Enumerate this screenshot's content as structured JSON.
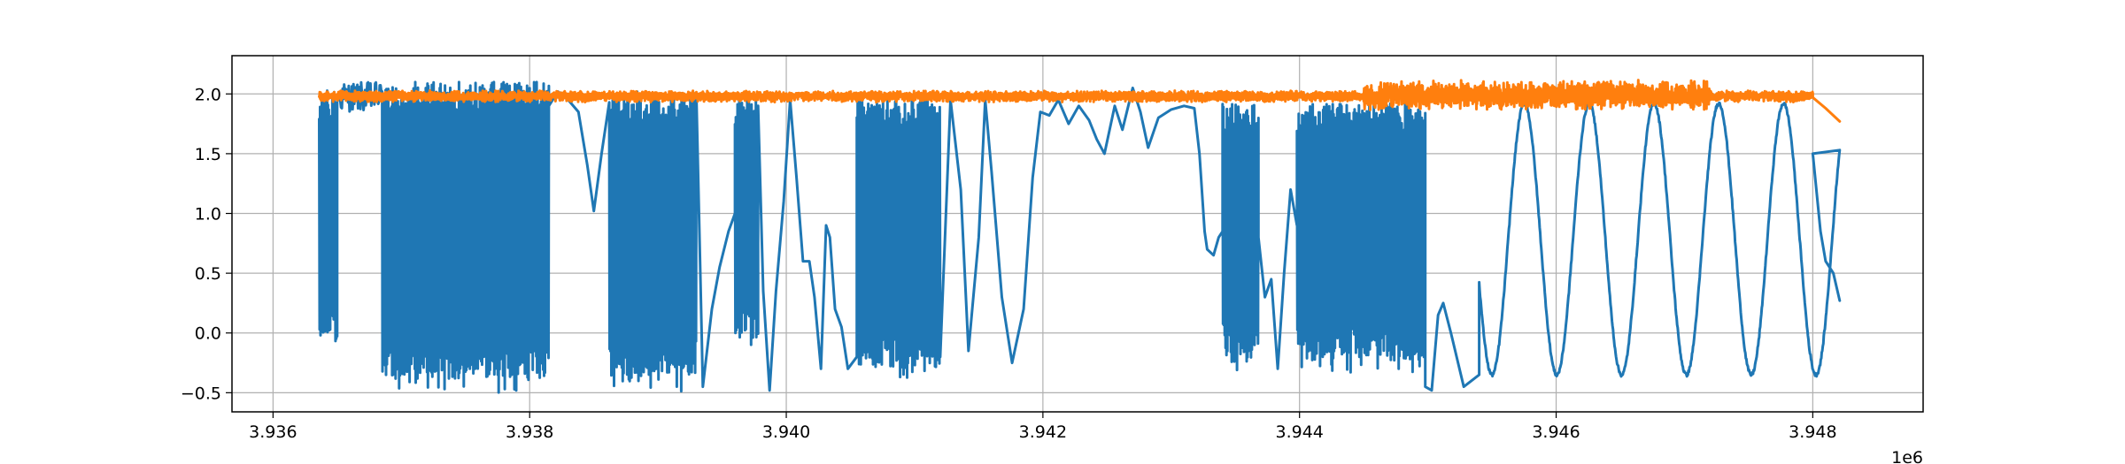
{
  "chart_data": {
    "type": "line",
    "title": "",
    "xlabel": "",
    "ylabel": "",
    "x_offset_label": "1e6",
    "xlim": [
      3.93568,
      3.94886
    ],
    "ylim": [
      -0.66,
      2.32
    ],
    "x_ticks": [
      3.936,
      3.938,
      3.94,
      3.942,
      3.944,
      3.946,
      3.948
    ],
    "x_tick_labels": [
      "3.936",
      "3.938",
      "3.940",
      "3.942",
      "3.944",
      "3.946",
      "3.948"
    ],
    "y_ticks": [
      -0.5,
      0.0,
      0.5,
      1.0,
      1.5,
      2.0
    ],
    "y_tick_labels": [
      "−0.5",
      "0.0",
      "0.5",
      "1.0",
      "1.5",
      "2.0"
    ],
    "grid": true,
    "legend": "none",
    "colors": {
      "series_1": "#1f77b4",
      "series_2": "#ff7f0e",
      "grid": "#b0b0b0",
      "axes": "#000000"
    },
    "series": [
      {
        "key": "series_1",
        "segments": [
          {
            "x0": 3.93636,
            "x1": 3.9365,
            "kind": "osc",
            "lo": -0.17,
            "hi": 2.04
          },
          {
            "x0": 3.9365,
            "x1": 3.93685,
            "kind": "plateau",
            "lo": 1.55,
            "hi": 2.1
          },
          {
            "x0": 3.93685,
            "x1": 3.93815,
            "kind": "osc",
            "lo": -0.5,
            "hi": 2.1
          },
          {
            "x0": 3.93815,
            "x1": 3.9383,
            "kind": "lines",
            "points": [
              [
                3.93815,
                1.9
              ],
              [
                3.93822,
                2.02
              ],
              [
                3.9383,
                1.95
              ]
            ]
          },
          {
            "x0": 3.9383,
            "x1": 3.93862,
            "kind": "lines",
            "points": [
              [
                3.9383,
                1.95
              ],
              [
                3.93838,
                1.85
              ],
              [
                3.93845,
                1.4
              ],
              [
                3.9385,
                1.02
              ],
              [
                3.93856,
                1.5
              ],
              [
                3.93862,
                1.93
              ]
            ]
          },
          {
            "x0": 3.93862,
            "x1": 3.9393,
            "kind": "osc",
            "lo": -0.52,
            "hi": 2.02
          },
          {
            "x0": 3.9393,
            "x1": 3.9396,
            "kind": "lines",
            "points": [
              [
                3.9393,
                1.95
              ],
              [
                3.93935,
                -0.45
              ],
              [
                3.93942,
                0.2
              ],
              [
                3.93948,
                0.55
              ],
              [
                3.93955,
                0.85
              ],
              [
                3.9396,
                1.0
              ]
            ]
          },
          {
            "x0": 3.9396,
            "x1": 3.93978,
            "kind": "osc",
            "lo": -0.15,
            "hi": 2.0
          },
          {
            "x0": 3.93978,
            "x1": 3.94022,
            "kind": "lines",
            "points": [
              [
                3.93978,
                1.9
              ],
              [
                3.93982,
                0.35
              ],
              [
                3.93987,
                -0.48
              ],
              [
                3.93992,
                0.35
              ],
              [
                3.93998,
                1.1
              ],
              [
                3.94003,
                1.95
              ],
              [
                3.94008,
                1.3
              ],
              [
                3.94013,
                0.6
              ],
              [
                3.94018,
                0.6
              ],
              [
                3.94022,
                0.3
              ]
            ]
          },
          {
            "x0": 3.94022,
            "x1": 3.94055,
            "kind": "lines",
            "points": [
              [
                3.94022,
                0.3
              ],
              [
                3.94027,
                -0.3
              ],
              [
                3.94031,
                0.9
              ],
              [
                3.94034,
                0.8
              ],
              [
                3.94038,
                0.2
              ],
              [
                3.94043,
                0.05
              ],
              [
                3.94048,
                -0.3
              ],
              [
                3.94055,
                -0.2
              ]
            ]
          },
          {
            "x0": 3.94055,
            "x1": 3.9412,
            "kind": "osc",
            "lo": -0.4,
            "hi": 1.97
          },
          {
            "x0": 3.9412,
            "x1": 3.9416,
            "kind": "lines",
            "points": [
              [
                3.9412,
                -0.2
              ],
              [
                3.94128,
                1.95
              ],
              [
                3.94136,
                1.2
              ],
              [
                3.94142,
                -0.15
              ],
              [
                3.9415,
                0.8
              ],
              [
                3.94155,
                1.95
              ],
              [
                3.9416,
                1.35
              ]
            ]
          },
          {
            "x0": 3.9416,
            "x1": 3.94185,
            "kind": "lines",
            "points": [
              [
                3.9416,
                1.35
              ],
              [
                3.94168,
                0.3
              ],
              [
                3.94176,
                -0.25
              ],
              [
                3.94185,
                0.2
              ]
            ]
          },
          {
            "x0": 3.94185,
            "x1": 3.94328,
            "kind": "lines",
            "points": [
              [
                3.94185,
                0.2
              ],
              [
                3.94192,
                1.3
              ],
              [
                3.94198,
                1.85
              ],
              [
                3.94205,
                1.82
              ],
              [
                3.94212,
                1.95
              ],
              [
                3.9422,
                1.75
              ],
              [
                3.94228,
                1.9
              ],
              [
                3.94236,
                1.78
              ],
              [
                3.94242,
                1.62
              ],
              [
                3.94248,
                1.5
              ],
              [
                3.94256,
                1.9
              ],
              [
                3.94262,
                1.7
              ],
              [
                3.9427,
                2.05
              ],
              [
                3.94276,
                1.85
              ],
              [
                3.94282,
                1.55
              ],
              [
                3.9429,
                1.8
              ],
              [
                3.943,
                1.87
              ],
              [
                3.9431,
                1.9
              ],
              [
                3.94318,
                1.88
              ],
              [
                3.94322,
                1.5
              ],
              [
                3.94326,
                0.85
              ],
              [
                3.94328,
                0.7
              ]
            ]
          },
          {
            "x0": 3.94328,
            "x1": 3.9434,
            "kind": "lines",
            "points": [
              [
                3.94328,
                0.7
              ],
              [
                3.94333,
                0.65
              ],
              [
                3.94337,
                0.8
              ],
              [
                3.9434,
                0.85
              ]
            ]
          },
          {
            "x0": 3.9434,
            "x1": 3.94368,
            "kind": "osc",
            "lo": -0.32,
            "hi": 1.92
          },
          {
            "x0": 3.94368,
            "x1": 3.94398,
            "kind": "lines",
            "points": [
              [
                3.94368,
                0.8
              ],
              [
                3.94373,
                0.3
              ],
              [
                3.94378,
                0.45
              ],
              [
                3.94383,
                -0.3
              ],
              [
                3.94388,
                0.5
              ],
              [
                3.94393,
                1.2
              ],
              [
                3.94398,
                0.9
              ]
            ]
          },
          {
            "x0": 3.94398,
            "x1": 3.94498,
            "kind": "osc",
            "lo": -0.33,
            "hi": 1.92
          },
          {
            "x0": 3.94498,
            "x1": 3.9454,
            "kind": "lines",
            "points": [
              [
                3.94498,
                -0.45
              ],
              [
                3.94503,
                -0.48
              ],
              [
                3.94508,
                0.15
              ],
              [
                3.94512,
                0.25
              ],
              [
                3.94518,
                0.0
              ],
              [
                3.94528,
                -0.45
              ],
              [
                3.9454,
                -0.35
              ]
            ]
          },
          {
            "x0": 3.9454,
            "x1": 3.94821,
            "kind": "sine",
            "period": 0.000505,
            "phase_x": 3.9455,
            "lo": -0.35,
            "hi": 1.92
          },
          {
            "x0": 3.948,
            "x1": 3.94821,
            "kind": "lines",
            "points": [
              [
                3.948,
                1.5
              ],
              [
                3.94806,
                0.85
              ],
              [
                3.9481,
                0.6
              ],
              [
                3.94816,
                0.5
              ],
              [
                3.94821,
                0.27
              ]
            ]
          }
        ]
      },
      {
        "key": "series_2",
        "segments": [
          {
            "x0": 3.93636,
            "x1": 3.9445,
            "kind": "noise",
            "center": 1.98,
            "amp": 0.05
          },
          {
            "x0": 3.9445,
            "x1": 3.9472,
            "kind": "noise",
            "center": 1.99,
            "amp": 0.13
          },
          {
            "x0": 3.9472,
            "x1": 3.948,
            "kind": "noise",
            "center": 1.98,
            "amp": 0.05
          },
          {
            "x0": 3.948,
            "x1": 3.94821,
            "kind": "lines",
            "points": [
              [
                3.948,
                1.97
              ],
              [
                3.9481,
                1.88
              ],
              [
                3.94821,
                1.77
              ]
            ]
          }
        ]
      }
    ]
  }
}
